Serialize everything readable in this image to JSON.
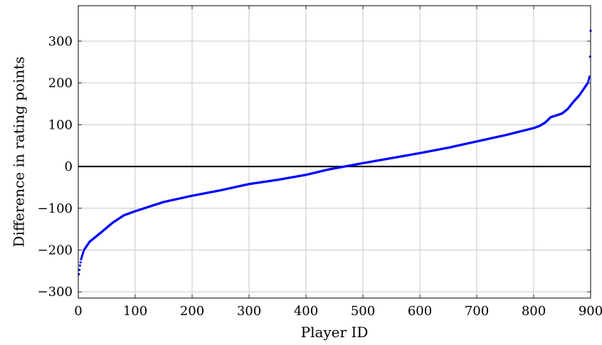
{
  "chart_data": {
    "type": "scatter",
    "title": "",
    "xlabel": "Player ID",
    "ylabel": "Difference in rating points",
    "xlim": [
      0,
      900
    ],
    "ylim": [
      -315,
      385
    ],
    "xticks": [
      0,
      100,
      200,
      300,
      400,
      500,
      600,
      700,
      800,
      900
    ],
    "yticks": [
      -300,
      -200,
      -100,
      0,
      100,
      200,
      300
    ],
    "xtick_labels": [
      "0",
      "100",
      "200",
      "300",
      "400",
      "500",
      "600",
      "700",
      "800",
      "900"
    ],
    "ytick_labels": [
      "−300",
      "−200",
      "−100",
      "0",
      "100",
      "200",
      "300"
    ],
    "grid": true,
    "reference_line_y": 0,
    "marker_color": "#0000ff",
    "reference_line_color": "#000000",
    "points_count": 900,
    "sorted_curve_anchors": [
      [
        1,
        -258
      ],
      [
        3,
        -237
      ],
      [
        5,
        -222
      ],
      [
        10,
        -200
      ],
      [
        20,
        -180
      ],
      [
        40,
        -158
      ],
      [
        60,
        -135
      ],
      [
        80,
        -117
      ],
      [
        100,
        -107
      ],
      [
        150,
        -85
      ],
      [
        200,
        -70
      ],
      [
        250,
        -57
      ],
      [
        300,
        -42
      ],
      [
        350,
        -32
      ],
      [
        400,
        -20
      ],
      [
        440,
        -7
      ],
      [
        460,
        -2
      ],
      [
        480,
        3
      ],
      [
        500,
        8
      ],
      [
        550,
        20
      ],
      [
        600,
        32
      ],
      [
        650,
        45
      ],
      [
        700,
        60
      ],
      [
        750,
        75
      ],
      [
        800,
        92
      ],
      [
        810,
        97
      ],
      [
        820,
        105
      ],
      [
        830,
        118
      ],
      [
        850,
        127
      ],
      [
        860,
        138
      ],
      [
        870,
        155
      ],
      [
        880,
        170
      ],
      [
        890,
        190
      ],
      [
        895,
        200
      ],
      [
        898,
        215
      ],
      [
        899,
        263
      ],
      [
        900,
        325
      ]
    ]
  }
}
